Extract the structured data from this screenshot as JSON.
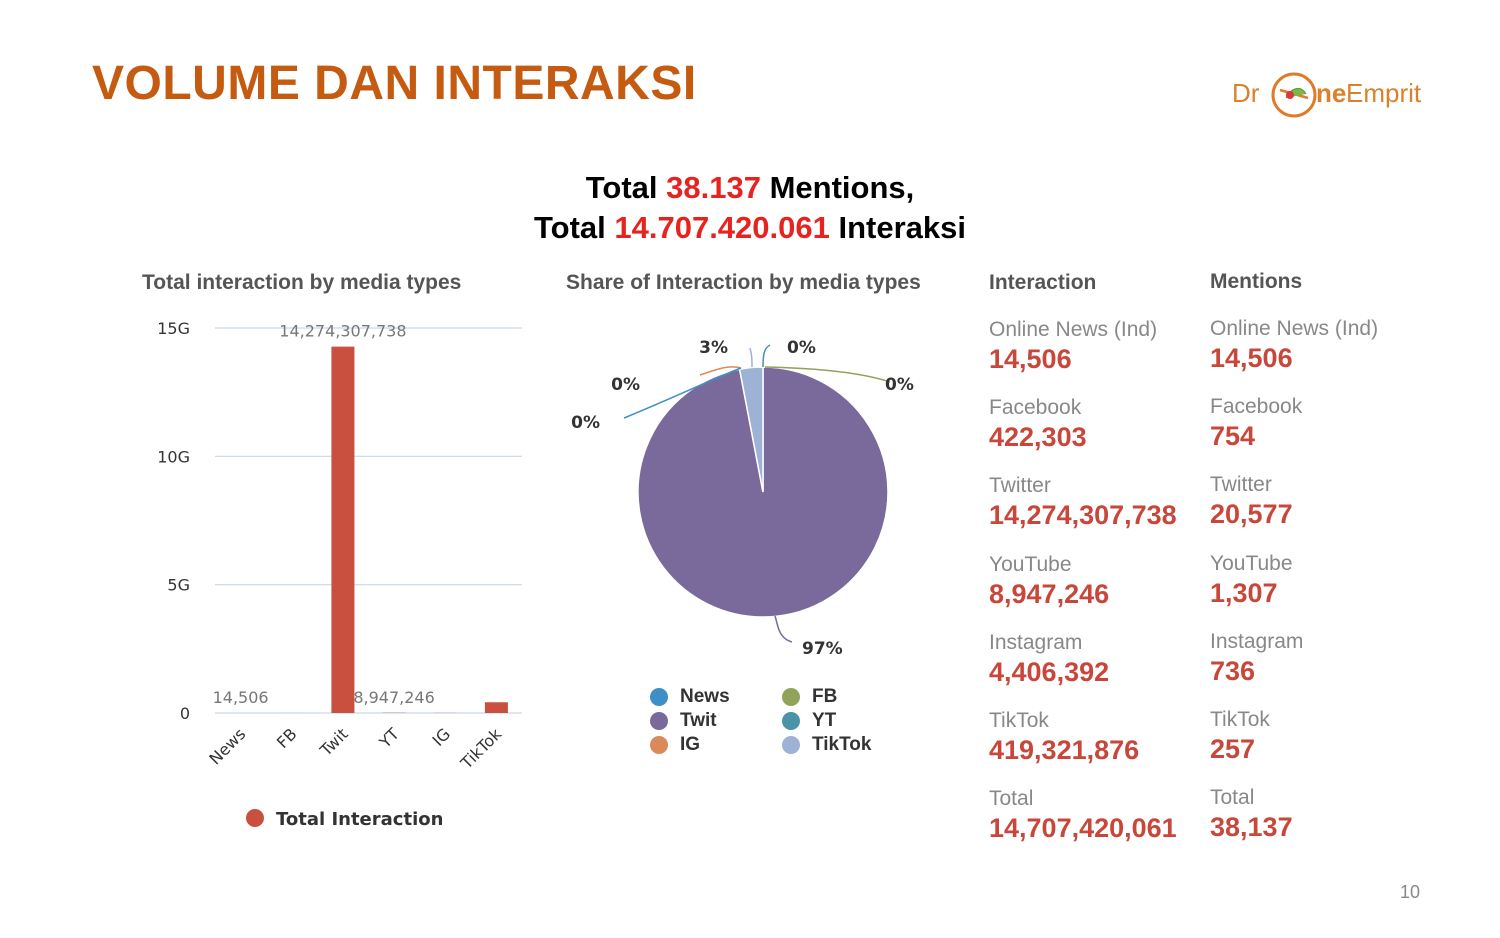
{
  "slide": {
    "title": "VOLUME DAN INTERAKSI",
    "logo_part1": "Dr",
    "logo_part2": "ne",
    "logo_part3": "Emprit",
    "page_number": "10"
  },
  "headline": {
    "line1_prefix": "Total ",
    "line1_value": "38.137",
    "line1_suffix": " Mentions,",
    "line2_prefix": "Total ",
    "line2_value": "14.707.420.061",
    "line2_suffix": " Interaksi"
  },
  "chart_data": [
    {
      "type": "bar",
      "title": "Total interaction by media types",
      "categories": [
        "News",
        "FB",
        "Twit",
        "YT",
        "IG",
        "TikTok"
      ],
      "series": [
        {
          "name": "Total Interaction",
          "values": [
            14506,
            422303,
            14274307738,
            8947246,
            4406392,
            419321876
          ],
          "color": "#c9503f"
        }
      ],
      "data_labels": [
        "14,506",
        "",
        "14,274,307,738",
        "8,947,246",
        "",
        ""
      ],
      "y_ticks": [
        "0",
        "5G",
        "10G",
        "15G"
      ],
      "y_tick_values": [
        0,
        5000000000,
        10000000000,
        15000000000
      ],
      "ylim": [
        0,
        15000000000
      ],
      "grid": true,
      "legend": "bottom"
    },
    {
      "type": "pie",
      "title": "Share of Interaction by media types",
      "slices": [
        {
          "name": "News",
          "value": 0,
          "label": "0%",
          "color": "#3d8fc6"
        },
        {
          "name": "FB",
          "value": 0,
          "label": "0%",
          "color": "#8fa35a"
        },
        {
          "name": "Twit",
          "value": 97,
          "label": "97%",
          "color": "#7a6a9b"
        },
        {
          "name": "YT",
          "value": 0,
          "label": "0%",
          "color": "#4a93a8"
        },
        {
          "name": "IG",
          "value": 0,
          "label": "0%",
          "color": "#d9895a"
        },
        {
          "name": "TikTok",
          "value": 3,
          "label": "3%",
          "color": "#9db2d4"
        }
      ],
      "legend": "bottom"
    }
  ],
  "stats": {
    "interaction_header": "Interaction",
    "mentions_header": "Mentions",
    "interaction": [
      {
        "label": "Online News (Ind)",
        "value": "14,506"
      },
      {
        "label": "Facebook",
        "value": "422,303"
      },
      {
        "label": "Twitter",
        "value": "14,274,307,738"
      },
      {
        "label": "YouTube",
        "value": "8,947,246"
      },
      {
        "label": "Instagram",
        "value": "4,406,392"
      },
      {
        "label": "TikTok",
        "value": "419,321,876"
      },
      {
        "label": "Total",
        "value": "14,707,420,061"
      }
    ],
    "mentions": [
      {
        "label": "Online News (Ind)",
        "value": "14,506"
      },
      {
        "label": "Facebook",
        "value": "754"
      },
      {
        "label": "Twitter",
        "value": "20,577"
      },
      {
        "label": "YouTube",
        "value": "1,307"
      },
      {
        "label": "Instagram",
        "value": "736"
      },
      {
        "label": "TikTok",
        "value": "257"
      },
      {
        "label": "Total",
        "value": "38,137"
      }
    ]
  }
}
